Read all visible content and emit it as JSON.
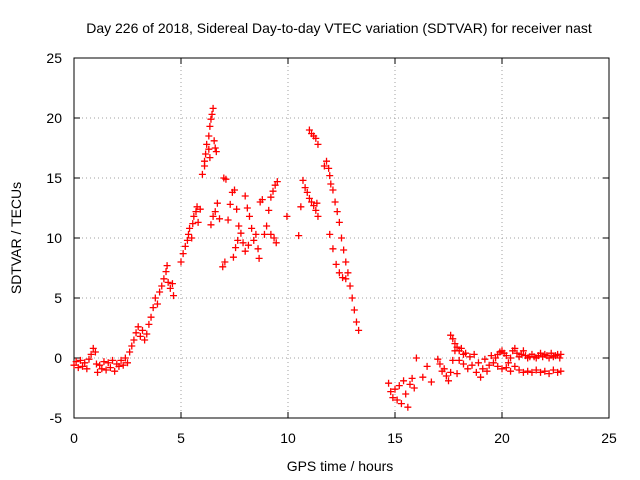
{
  "chart_data": {
    "type": "scatter",
    "title": "Day 226 of 2018, Sidereal Day-to-day VTEC variation (SDTVAR) for receiver nast",
    "xlabel": "GPS time / hours",
    "ylabel": "SDTVAR / TECUs",
    "xlim": [
      0,
      25
    ],
    "ylim": [
      -5,
      25
    ],
    "xticks": [
      0,
      5,
      10,
      15,
      20,
      25
    ],
    "yticks": [
      -5,
      0,
      5,
      10,
      15,
      20,
      25
    ],
    "grid": true,
    "marker": "plus",
    "color": "#ff0000",
    "series": [
      {
        "name": "SDTVAR",
        "points": [
          [
            0.0,
            -0.6
          ],
          [
            0.1,
            -0.3
          ],
          [
            0.2,
            -0.8
          ],
          [
            0.3,
            -0.2
          ],
          [
            0.4,
            -0.7
          ],
          [
            0.5,
            -0.4
          ],
          [
            0.6,
            -0.9
          ],
          [
            0.7,
            -0.1
          ],
          [
            0.8,
            0.3
          ],
          [
            0.9,
            0.8
          ],
          [
            1.0,
            0.5
          ],
          [
            1.05,
            -0.5
          ],
          [
            1.1,
            -1.2
          ],
          [
            1.2,
            -0.6
          ],
          [
            1.3,
            -0.9
          ],
          [
            1.4,
            -0.3
          ],
          [
            1.5,
            -1.0
          ],
          [
            1.6,
            -0.4
          ],
          [
            1.7,
            -0.8
          ],
          [
            1.8,
            -0.2
          ],
          [
            1.9,
            -1.1
          ],
          [
            2.0,
            -0.5
          ],
          [
            2.1,
            -0.7
          ],
          [
            2.2,
            -0.2
          ],
          [
            2.3,
            -0.6
          ],
          [
            2.4,
            0.0
          ],
          [
            2.5,
            -0.4
          ],
          [
            2.6,
            0.5
          ],
          [
            2.7,
            1.0
          ],
          [
            2.8,
            1.5
          ],
          [
            2.9,
            2.1
          ],
          [
            3.0,
            2.6
          ],
          [
            3.1,
            1.8
          ],
          [
            3.2,
            2.3
          ],
          [
            3.3,
            1.5
          ],
          [
            3.4,
            2.0
          ],
          [
            3.5,
            2.8
          ],
          [
            3.6,
            3.4
          ],
          [
            3.7,
            4.2
          ],
          [
            3.8,
            5.0
          ],
          [
            3.9,
            4.5
          ],
          [
            4.0,
            5.5
          ],
          [
            4.1,
            6.0
          ],
          [
            4.2,
            6.6
          ],
          [
            4.3,
            7.2
          ],
          [
            4.35,
            7.7
          ],
          [
            4.4,
            6.3
          ],
          [
            4.5,
            5.8
          ],
          [
            4.6,
            6.2
          ],
          [
            4.65,
            5.2
          ],
          [
            5.0,
            8.0
          ],
          [
            5.1,
            8.7
          ],
          [
            5.2,
            9.3
          ],
          [
            5.3,
            9.8
          ],
          [
            5.35,
            10.3
          ],
          [
            5.4,
            10.8
          ],
          [
            5.5,
            10.0
          ],
          [
            5.55,
            11.2
          ],
          [
            5.6,
            11.8
          ],
          [
            5.7,
            12.2
          ],
          [
            5.75,
            12.6
          ],
          [
            5.8,
            11.3
          ],
          [
            5.9,
            12.4
          ],
          [
            6.0,
            15.3
          ],
          [
            6.1,
            16.0
          ],
          [
            6.15,
            17.0
          ],
          [
            6.2,
            17.8
          ],
          [
            6.3,
            18.5
          ],
          [
            6.35,
            19.3
          ],
          [
            6.4,
            19.9
          ],
          [
            6.45,
            20.3
          ],
          [
            6.5,
            20.8
          ],
          [
            6.55,
            18.1
          ],
          [
            6.6,
            17.5
          ],
          [
            6.65,
            17.2
          ],
          [
            6.3,
            17.4
          ],
          [
            6.35,
            16.7
          ],
          [
            6.1,
            16.4
          ],
          [
            6.4,
            11.1
          ],
          [
            6.5,
            11.8
          ],
          [
            6.6,
            12.2
          ],
          [
            6.7,
            12.9
          ],
          [
            6.8,
            11.6
          ],
          [
            7.0,
            15.0
          ],
          [
            7.1,
            14.9
          ],
          [
            6.95,
            7.6
          ],
          [
            7.05,
            8.0
          ],
          [
            7.2,
            11.5
          ],
          [
            7.3,
            12.8
          ],
          [
            7.4,
            13.8
          ],
          [
            7.5,
            14.0
          ],
          [
            7.6,
            12.4
          ],
          [
            7.7,
            11.0
          ],
          [
            7.55,
            9.2
          ],
          [
            7.65,
            9.8
          ],
          [
            7.8,
            10.4
          ],
          [
            7.9,
            9.6
          ],
          [
            7.45,
            8.4
          ],
          [
            8.0,
            13.5
          ],
          [
            8.1,
            12.5
          ],
          [
            8.2,
            11.8
          ],
          [
            8.3,
            10.8
          ],
          [
            8.4,
            9.8
          ],
          [
            8.5,
            10.3
          ],
          [
            8.0,
            8.9
          ],
          [
            8.15,
            9.4
          ],
          [
            8.6,
            9.1
          ],
          [
            8.65,
            8.3
          ],
          [
            8.7,
            13.0
          ],
          [
            8.8,
            13.2
          ],
          [
            8.9,
            10.3
          ],
          [
            9.0,
            11.0
          ],
          [
            9.1,
            12.3
          ],
          [
            9.2,
            13.4
          ],
          [
            9.3,
            13.9
          ],
          [
            9.4,
            14.4
          ],
          [
            9.5,
            14.7
          ],
          [
            9.2,
            10.3
          ],
          [
            9.35,
            10.0
          ],
          [
            9.45,
            9.6
          ],
          [
            9.95,
            11.8
          ],
          [
            10.5,
            10.2
          ],
          [
            10.6,
            12.6
          ],
          [
            10.7,
            14.8
          ],
          [
            10.8,
            14.2
          ],
          [
            10.9,
            13.8
          ],
          [
            11.0,
            19.0
          ],
          [
            11.1,
            18.7
          ],
          [
            11.2,
            18.5
          ],
          [
            11.3,
            18.3
          ],
          [
            11.4,
            17.8
          ],
          [
            11.0,
            13.3
          ],
          [
            11.1,
            13.0
          ],
          [
            11.2,
            12.7
          ],
          [
            11.3,
            12.3
          ],
          [
            11.4,
            11.8
          ],
          [
            11.35,
            12.9
          ],
          [
            11.7,
            16.0
          ],
          [
            11.8,
            16.4
          ],
          [
            11.9,
            15.8
          ],
          [
            11.95,
            15.2
          ],
          [
            12.0,
            14.5
          ],
          [
            12.1,
            14.0
          ],
          [
            12.2,
            13.0
          ],
          [
            12.3,
            12.2
          ],
          [
            12.4,
            11.3
          ],
          [
            12.5,
            10.0
          ],
          [
            12.6,
            9.0
          ],
          [
            12.7,
            8.0
          ],
          [
            12.8,
            7.1
          ],
          [
            12.9,
            6.0
          ],
          [
            13.0,
            5.0
          ],
          [
            13.1,
            4.0
          ],
          [
            13.2,
            3.0
          ],
          [
            13.3,
            2.3
          ],
          [
            11.95,
            10.3
          ],
          [
            12.1,
            9.1
          ],
          [
            12.25,
            7.8
          ],
          [
            12.4,
            7.1
          ],
          [
            12.55,
            6.7
          ],
          [
            12.7,
            6.6
          ],
          [
            14.7,
            -2.1
          ],
          [
            14.8,
            -2.8
          ],
          [
            14.9,
            -3.3
          ],
          [
            15.0,
            -2.6
          ],
          [
            15.1,
            -3.5
          ],
          [
            15.2,
            -2.3
          ],
          [
            15.3,
            -3.8
          ],
          [
            15.4,
            -1.9
          ],
          [
            15.5,
            -3.0
          ],
          [
            15.6,
            -4.1
          ],
          [
            15.7,
            -2.2
          ],
          [
            15.8,
            -1.7
          ],
          [
            15.9,
            -2.5
          ],
          [
            16.0,
            0.0
          ],
          [
            16.3,
            -1.6
          ],
          [
            16.5,
            -0.7
          ],
          [
            16.7,
            -2.0
          ],
          [
            17.0,
            -0.1
          ],
          [
            17.1,
            -0.5
          ],
          [
            17.2,
            -1.1
          ],
          [
            17.3,
            -0.9
          ],
          [
            17.4,
            -1.5
          ],
          [
            17.5,
            -1.9
          ],
          [
            17.6,
            -1.2
          ],
          [
            17.7,
            -0.2
          ],
          [
            17.8,
            0.6
          ],
          [
            17.9,
            -1.3
          ],
          [
            18.0,
            -0.2
          ],
          [
            18.1,
            0.8
          ],
          [
            18.2,
            -0.5
          ],
          [
            18.3,
            0.4
          ],
          [
            18.4,
            -0.9
          ],
          [
            18.5,
            0.1
          ],
          [
            18.6,
            -0.6
          ],
          [
            18.7,
            0.3
          ],
          [
            18.8,
            -1.2
          ],
          [
            18.9,
            -0.4
          ],
          [
            19.0,
            -1.6
          ],
          [
            19.1,
            -0.9
          ],
          [
            19.2,
            -0.1
          ],
          [
            19.3,
            -1.1
          ],
          [
            19.4,
            -0.6
          ],
          [
            19.5,
            0.2
          ],
          [
            19.6,
            -0.4
          ],
          [
            17.6,
            1.9
          ],
          [
            17.7,
            1.6
          ],
          [
            17.8,
            1.2
          ],
          [
            17.9,
            0.9
          ],
          [
            18.0,
            0.6
          ],
          [
            18.2,
            0.3
          ],
          [
            19.7,
            0.0
          ],
          [
            19.8,
            0.3
          ],
          [
            19.9,
            0.5
          ],
          [
            20.0,
            0.6
          ],
          [
            20.1,
            0.4
          ],
          [
            20.2,
            0.2
          ],
          [
            20.3,
            -0.4
          ],
          [
            20.4,
            0.0
          ],
          [
            20.5,
            0.6
          ],
          [
            20.6,
            0.8
          ],
          [
            20.7,
            0.4
          ],
          [
            20.8,
            0.1
          ],
          [
            20.9,
            0.3
          ],
          [
            21.0,
            0.6
          ],
          [
            21.1,
            0.2
          ],
          [
            21.2,
            0.0
          ],
          [
            21.3,
            0.1
          ],
          [
            21.4,
            0.3
          ],
          [
            21.5,
            0.1
          ],
          [
            21.6,
            0.0
          ],
          [
            21.7,
            0.2
          ],
          [
            21.8,
            0.4
          ],
          [
            21.9,
            0.1
          ],
          [
            22.0,
            0.3
          ],
          [
            22.1,
            0.2
          ],
          [
            22.2,
            0.0
          ],
          [
            22.3,
            0.4
          ],
          [
            22.4,
            0.1
          ],
          [
            22.5,
            0.2
          ],
          [
            22.6,
            0.3
          ],
          [
            22.7,
            0.0
          ],
          [
            22.75,
            0.3
          ],
          [
            19.8,
            -0.7
          ],
          [
            20.0,
            -0.9
          ],
          [
            20.2,
            -0.8
          ],
          [
            20.4,
            -1.1
          ],
          [
            20.6,
            -0.7
          ],
          [
            20.8,
            -1.0
          ],
          [
            21.0,
            -1.2
          ],
          [
            21.2,
            -1.1
          ],
          [
            21.4,
            -1.2
          ],
          [
            21.6,
            -1.0
          ],
          [
            21.8,
            -1.2
          ],
          [
            22.0,
            -1.1
          ],
          [
            22.2,
            -1.3
          ],
          [
            22.4,
            -1.0
          ],
          [
            22.6,
            -1.2
          ],
          [
            22.75,
            -1.1
          ]
        ]
      }
    ]
  }
}
